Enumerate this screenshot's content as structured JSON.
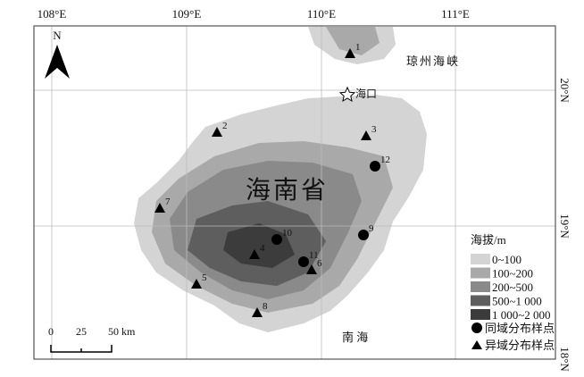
{
  "map": {
    "north_label": "N",
    "lon_ticks": [
      "108°E",
      "109°E",
      "110°E",
      "111°E"
    ],
    "lat_ticks": [
      "20°N",
      "19°N",
      "18°N"
    ],
    "place_labels": {
      "strait": "琼州海峡",
      "capital": "海口",
      "province": "海南省",
      "sea": "南 海"
    },
    "scale_bar": {
      "ticks": [
        "0",
        "25",
        "50 km"
      ]
    },
    "sample_points": [
      {
        "id": "1",
        "type": "triangle"
      },
      {
        "id": "2",
        "type": "triangle"
      },
      {
        "id": "3",
        "type": "triangle"
      },
      {
        "id": "4",
        "type": "triangle"
      },
      {
        "id": "5",
        "type": "triangle"
      },
      {
        "id": "6",
        "type": "triangle"
      },
      {
        "id": "7",
        "type": "triangle"
      },
      {
        "id": "8",
        "type": "triangle"
      },
      {
        "id": "9",
        "type": "circle"
      },
      {
        "id": "10",
        "type": "circle"
      },
      {
        "id": "11",
        "type": "circle"
      },
      {
        "id": "12",
        "type": "circle"
      }
    ],
    "legend": {
      "title": "海拔/m",
      "elevation_classes": [
        {
          "label": "0~100",
          "color": "#d4d4d4"
        },
        {
          "label": "100~200",
          "color": "#a9a9a9"
        },
        {
          "label": "200~500",
          "color": "#8a8a8a"
        },
        {
          "label": "500~1 000",
          "color": "#5e5e5e"
        },
        {
          "label": "1 000~2 000",
          "color": "#3c3c3c"
        }
      ],
      "symbols": [
        {
          "label": "同域分布样点",
          "shape": "circle"
        },
        {
          "label": "异域分布样点",
          "shape": "triangle"
        }
      ]
    }
  }
}
